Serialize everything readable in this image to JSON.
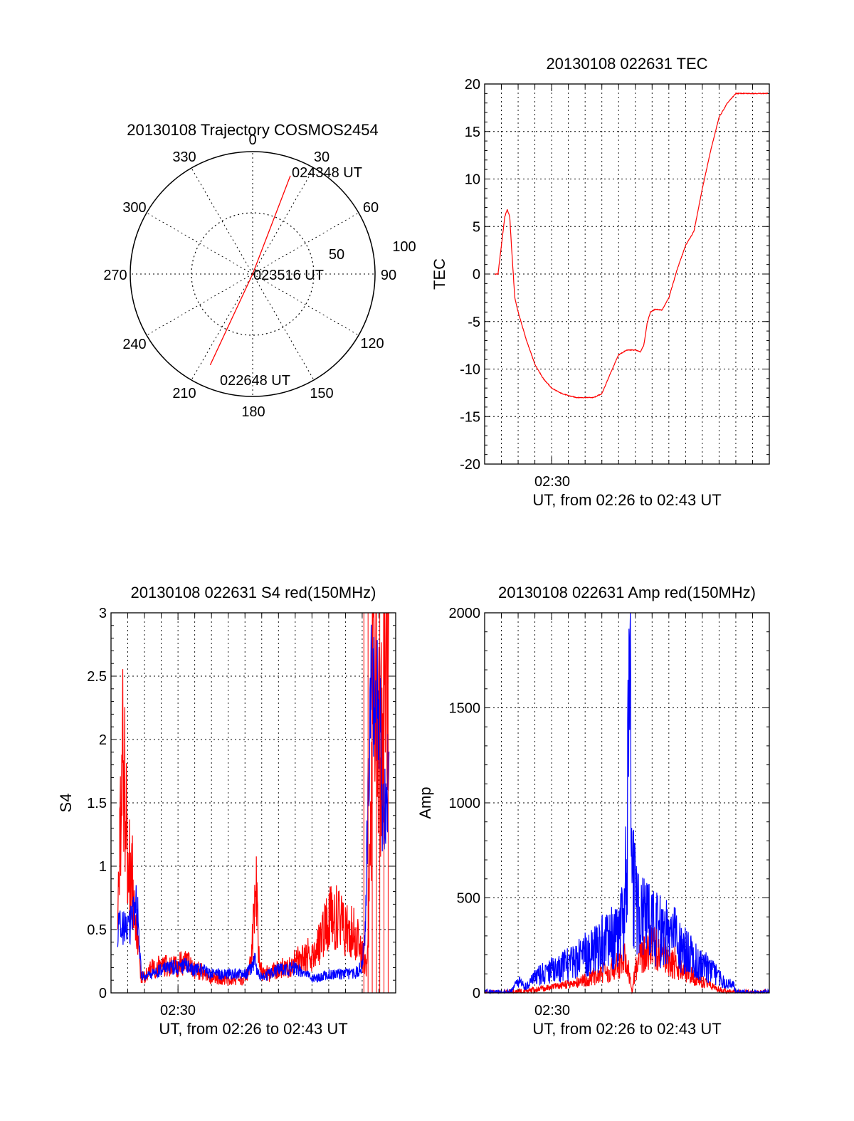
{
  "chart_data": [
    {
      "id": "trajectory",
      "type": "polar",
      "title": "20130108 Trajectory COSMOS2454",
      "angle_labels": [
        "0",
        "30",
        "60",
        "90",
        "120",
        "150",
        "180",
        "210",
        "240",
        "270",
        "300",
        "330"
      ],
      "radial_labels": [
        "50",
        "100"
      ],
      "radial_range": [
        0,
        100
      ],
      "grid": true,
      "start_label": "022648 UT",
      "mid_label": "023516 UT",
      "end_label": "024348 UT",
      "series": [
        {
          "color": "#ff0000",
          "points": [
            {
              "az": 205,
              "zen": 82
            },
            {
              "az": 200,
              "zen": 0
            },
            {
              "az": 20,
              "zen": 0
            },
            {
              "az": 21,
              "zen": 86
            }
          ]
        }
      ]
    },
    {
      "id": "tec",
      "type": "line",
      "title": "20130108 022631 TEC",
      "xlabel": "UT, from 02:26 to 02:43 UT",
      "ylabel": "TEC",
      "xlim": [
        0,
        17
      ],
      "ylim": [
        -20,
        20
      ],
      "yticks": [
        20,
        15,
        10,
        5,
        0,
        -5,
        -10,
        -15,
        -20
      ],
      "xtick_label": "02:30",
      "grid": true,
      "series": [
        {
          "color": "#ff0000",
          "x": [
            0.6,
            0.8,
            1.0,
            1.2,
            1.35,
            1.5,
            1.6,
            1.8,
            2.0,
            2.5,
            3.0,
            3.5,
            4.0,
            4.5,
            5.0,
            5.5,
            6.0,
            6.5,
            7.0,
            7.5,
            8.0,
            8.5,
            9.0,
            9.3,
            9.5,
            9.55,
            9.7,
            9.9,
            10.2,
            10.6,
            11.0,
            11.5,
            12.0,
            12.5,
            13.0,
            13.5,
            14.0,
            14.5,
            15.0,
            15.5,
            16.0,
            16.5,
            16.9
          ],
          "y": [
            0,
            0,
            3,
            6,
            6.8,
            6,
            3,
            -2.5,
            -4,
            -7,
            -9.5,
            -11,
            -12,
            -12.5,
            -12.8,
            -13,
            -13,
            -13,
            -12.6,
            -10.5,
            -8.5,
            -8,
            -8,
            -8.2,
            -7.5,
            -7,
            -5.2,
            -4,
            -3.7,
            -3.8,
            -2.5,
            0.5,
            3,
            4.5,
            9,
            13,
            16.5,
            18,
            19,
            19,
            19,
            19,
            19
          ]
        }
      ]
    },
    {
      "id": "s4",
      "type": "line",
      "title": "20130108 022631 S4 red(150MHz)",
      "xlabel": "UT, from 02:26 to 02:43 UT",
      "ylabel": "S4",
      "xlim": [
        0,
        17
      ],
      "ylim": [
        0,
        3
      ],
      "yticks": [
        3,
        2.5,
        2,
        1.5,
        1,
        0.5,
        0
      ],
      "xtick_label": "02:30",
      "grid": true,
      "series": [
        {
          "color": "#ff0000",
          "x": [
            0.4,
            0.5,
            0.7,
            0.85,
            1.0,
            1.2,
            1.4,
            1.6,
            1.8,
            2.0,
            2.2,
            2.4,
            2.6,
            3.0,
            3.5,
            4.0,
            4.5,
            5.0,
            5.5,
            6.0,
            6.5,
            7.0,
            7.5,
            8.0,
            8.3,
            8.5,
            8.65,
            8.8,
            9.0,
            9.5,
            10.0,
            10.5,
            11.0,
            11.5,
            12.0,
            12.5,
            13.0,
            13.5,
            14.0,
            14.5,
            15.0,
            15.3,
            15.5,
            15.7,
            15.9,
            16.1,
            16.3,
            16.6
          ],
          "y": [
            0.7,
            0.9,
            2.0,
            1.5,
            1.0,
            1.0,
            0.8,
            0.4,
            0.12,
            0.12,
            0.15,
            0.2,
            0.18,
            0.22,
            0.2,
            0.22,
            0.24,
            0.18,
            0.16,
            0.12,
            0.12,
            0.1,
            0.1,
            0.12,
            0.2,
            0.5,
            1.0,
            0.35,
            0.15,
            0.15,
            0.2,
            0.18,
            0.24,
            0.3,
            0.3,
            0.4,
            0.6,
            0.6,
            0.5,
            0.5,
            0.3,
            0.2,
            1.2,
            2.5,
            2.0,
            1.8,
            2.6,
            3.0
          ]
        },
        {
          "color": "#0000ff",
          "x": [
            0.4,
            0.7,
            1.0,
            1.2,
            1.5,
            1.8,
            2.0,
            2.5,
            3.0,
            3.5,
            4.0,
            4.5,
            5.0,
            5.5,
            6.0,
            6.5,
            7.0,
            7.5,
            8.0,
            8.4,
            8.6,
            8.8,
            9.0,
            9.5,
            10.0,
            10.5,
            11.0,
            11.5,
            12.0,
            12.5,
            13.0,
            13.5,
            14.0,
            14.5,
            15.0,
            15.2,
            15.4,
            15.6,
            15.8,
            16.0,
            16.2,
            16.6
          ],
          "y": [
            0.5,
            0.5,
            0.5,
            0.55,
            0.8,
            0.15,
            0.12,
            0.15,
            0.18,
            0.2,
            0.2,
            0.22,
            0.18,
            0.18,
            0.15,
            0.15,
            0.15,
            0.15,
            0.15,
            0.2,
            0.25,
            0.15,
            0.12,
            0.15,
            0.18,
            0.18,
            0.2,
            0.15,
            0.12,
            0.12,
            0.15,
            0.15,
            0.15,
            0.15,
            0.2,
            0.6,
            1.8,
            2.5,
            2.0,
            2.4,
            1.5,
            1.6
          ]
        }
      ]
    },
    {
      "id": "amp",
      "type": "line",
      "title": "20130108 022631 Amp red(150MHz)",
      "xlabel": "UT, from 02:26 to 02:43 UT",
      "ylabel": "Amp",
      "xlim": [
        0,
        17
      ],
      "ylim": [
        0,
        2000
      ],
      "yticks": [
        2000,
        1500,
        1000,
        500,
        0
      ],
      "xtick_label": "02:30",
      "grid": true,
      "series": [
        {
          "color": "#ff0000",
          "x": [
            0,
            1.0,
            2.0,
            3.0,
            4.0,
            5.0,
            6.0,
            7.0,
            7.5,
            8.0,
            8.3,
            8.5,
            8.7,
            8.8,
            9.0,
            9.2,
            9.5,
            10.0,
            10.5,
            11.0,
            11.5,
            12.0,
            12.5,
            13.0,
            13.5,
            14.0,
            14.5,
            15.0,
            17.0
          ],
          "y": [
            0,
            0,
            5,
            15,
            30,
            45,
            70,
            100,
            120,
            140,
            200,
            150,
            60,
            0,
            120,
            180,
            220,
            240,
            210,
            180,
            150,
            120,
            80,
            60,
            40,
            20,
            5,
            0,
            0
          ]
        },
        {
          "color": "#0000ff",
          "x": [
            0,
            1.5,
            2.0,
            2.5,
            3.0,
            3.5,
            4.0,
            5.0,
            6.0,
            7.0,
            7.5,
            8.0,
            8.3,
            8.5,
            8.6,
            8.7,
            8.8,
            8.9,
            9.0,
            9.2,
            9.5,
            10.0,
            10.5,
            11.0,
            11.5,
            12.0,
            12.5,
            13.0,
            13.5,
            14.0,
            14.5,
            14.8,
            15.0,
            17.0
          ],
          "y": [
            0,
            0,
            60,
            30,
            80,
            100,
            120,
            150,
            200,
            260,
            300,
            300,
            400,
            700,
            1400,
            1900,
            500,
            600,
            450,
            400,
            380,
            350,
            320,
            300,
            280,
            220,
            180,
            150,
            120,
            80,
            40,
            60,
            0,
            0
          ]
        }
      ]
    }
  ]
}
